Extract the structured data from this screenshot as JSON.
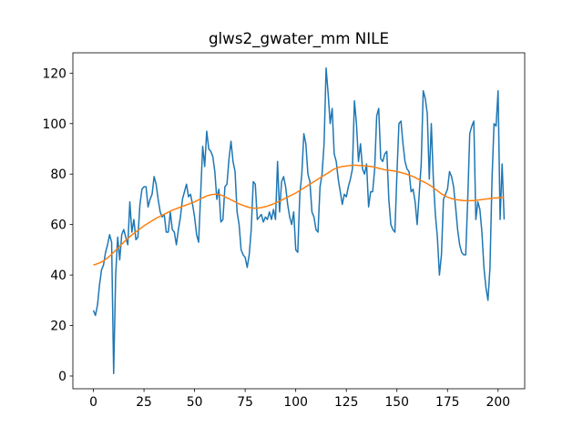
{
  "chart_data": {
    "type": "line",
    "title": "glws2_gwater_mm NILE",
    "x": [
      0,
      1,
      2,
      3,
      4,
      5,
      6,
      7,
      8,
      9,
      10,
      11,
      12,
      13,
      14,
      15,
      16,
      17,
      18,
      19,
      20,
      21,
      22,
      23,
      24,
      25,
      26,
      27,
      28,
      29,
      30,
      31,
      32,
      33,
      34,
      35,
      36,
      37,
      38,
      39,
      40,
      41,
      42,
      43,
      44,
      45,
      46,
      47,
      48,
      49,
      50,
      51,
      52,
      53,
      54,
      55,
      56,
      57,
      58,
      59,
      60,
      61,
      62,
      63,
      64,
      65,
      66,
      67,
      68,
      69,
      70,
      71,
      72,
      73,
      74,
      75,
      76,
      77,
      78,
      79,
      80,
      81,
      82,
      83,
      84,
      85,
      86,
      87,
      88,
      89,
      90,
      91,
      92,
      93,
      94,
      95,
      96,
      97,
      98,
      99,
      100,
      101,
      102,
      103,
      104,
      105,
      106,
      107,
      108,
      109,
      110,
      111,
      112,
      113,
      114,
      115,
      116,
      117,
      118,
      119,
      120,
      121,
      122,
      123,
      124,
      125,
      126,
      127,
      128,
      129,
      130,
      131,
      132,
      133,
      134,
      135,
      136,
      137,
      138,
      139,
      140,
      141,
      142,
      143,
      144,
      145,
      146,
      147,
      148,
      149,
      150,
      151,
      152,
      153,
      154,
      155,
      156,
      157,
      158,
      159,
      160,
      161,
      162,
      163,
      164,
      165,
      166,
      167,
      168,
      169,
      170,
      171,
      172,
      173,
      174,
      175,
      176,
      177,
      178,
      179,
      180,
      181,
      182,
      183,
      184,
      185,
      186,
      187,
      188,
      189,
      190,
      191,
      192,
      193,
      194,
      195,
      196,
      197,
      198,
      199,
      200,
      201,
      202,
      203
    ],
    "series": [
      {
        "color": "#1f77b4",
        "values": [
          26,
          24,
          28,
          36,
          42,
          44,
          49,
          52,
          56,
          53,
          1,
          40,
          55,
          46,
          56,
          58,
          55,
          52,
          69,
          57,
          62,
          54,
          55,
          68,
          74,
          75,
          75,
          67,
          70,
          72,
          79,
          76,
          70,
          65,
          63,
          64,
          57,
          57,
          65,
          58,
          57,
          52,
          58,
          63,
          70,
          73,
          76,
          71,
          72,
          68,
          63,
          56,
          53,
          72,
          91,
          83,
          97,
          90,
          89,
          87,
          81,
          70,
          74,
          61,
          62,
          75,
          76,
          86,
          93,
          85,
          81,
          65,
          60,
          50,
          48,
          47,
          43,
          48,
          58,
          77,
          76,
          62,
          63,
          64,
          61,
          63,
          62,
          65,
          62,
          66,
          62,
          85,
          65,
          77,
          79,
          75,
          68,
          63,
          60,
          65,
          50,
          49,
          72,
          80,
          96,
          92,
          80,
          77,
          65,
          63,
          58,
          57,
          75,
          80,
          92,
          122,
          112,
          100,
          106,
          88,
          85,
          78,
          73,
          68,
          72,
          71,
          75,
          78,
          82,
          109,
          100,
          85,
          92,
          82,
          80,
          84,
          67,
          73,
          73,
          82,
          103,
          106,
          86,
          85,
          88,
          89,
          70,
          60,
          58,
          57,
          80,
          100,
          101,
          92,
          85,
          82,
          81,
          73,
          74,
          69,
          60,
          72,
          84,
          113,
          110,
          104,
          78,
          100,
          78,
          64,
          55,
          40,
          48,
          70,
          72,
          74,
          81,
          79,
          75,
          67,
          58,
          52,
          49,
          48,
          48,
          70,
          96,
          99,
          101,
          62,
          69,
          66,
          57,
          43,
          35,
          30,
          43,
          78,
          100,
          99,
          113,
          62,
          84,
          62
        ]
      },
      {
        "color": "#ff7f0e",
        "values": [
          44,
          44.2,
          44.5,
          44.8,
          45.2,
          45.6,
          46.2,
          46.8,
          47.5,
          48.2,
          49,
          49.8,
          50.6,
          51.4,
          52.2,
          53,
          53.8,
          54.5,
          55.2,
          55.9,
          56.5,
          57.1,
          57.7,
          58.3,
          58.9,
          59.5,
          60,
          60.5,
          61,
          61.5,
          62,
          62.5,
          62.9,
          63.3,
          63.7,
          64.1,
          64.5,
          64.9,
          65.3,
          65.7,
          66,
          66.3,
          66.6,
          66.9,
          67.2,
          67.5,
          67.8,
          68.1,
          68.4,
          68.7,
          69,
          69.4,
          69.8,
          70.2,
          70.6,
          71,
          71.3,
          71.6,
          71.8,
          71.9,
          72,
          72,
          71.9,
          71.7,
          71.4,
          71,
          70.6,
          70.2,
          69.8,
          69.4,
          69,
          68.6,
          68.2,
          67.9,
          67.6,
          67.3,
          67,
          66.8,
          66.6,
          66.5,
          66.5,
          66.5,
          66.6,
          66.7,
          66.9,
          67.1,
          67.3,
          67.6,
          67.9,
          68.2,
          68.5,
          68.9,
          69.3,
          69.7,
          70.1,
          70.5,
          70.9,
          71.3,
          71.7,
          72.1,
          72.5,
          73,
          73.5,
          74,
          74.5,
          75,
          75.5,
          76,
          76.5,
          77,
          77.5,
          78,
          78.5,
          79,
          79.5,
          80,
          80.5,
          81,
          81.5,
          82,
          82.3,
          82.6,
          82.8,
          83,
          83.1,
          83.2,
          83.3,
          83.4,
          83.5,
          83.5,
          83.5,
          83.4,
          83.4,
          83.3,
          83.3,
          83.2,
          83.1,
          83,
          82.9,
          82.7,
          82.5,
          82.3,
          82.1,
          81.9,
          81.7,
          81.6,
          81.5,
          81.4,
          81.3,
          81.2,
          81,
          80.8,
          80.6,
          80.4,
          80.2,
          79.9,
          79.6,
          79.3,
          79,
          78.6,
          78.2,
          77.8,
          77.4,
          77,
          76.6,
          76.2,
          75.7,
          75.2,
          74.6,
          74,
          73.4,
          72.8,
          72.2,
          71.7,
          71.3,
          70.9,
          70.6,
          70.3,
          70.1,
          69.9,
          69.8,
          69.7,
          69.6,
          69.5,
          69.5,
          69.5,
          69.5,
          69.5,
          69.5,
          69.6,
          69.7,
          69.8,
          69.9,
          70,
          70.1,
          70.2,
          70.3,
          70.4,
          70.5,
          70.5,
          70.6,
          70.6,
          70.7,
          70.7
        ]
      }
    ],
    "xlim": [
      -10.15,
      213.15
    ],
    "xticks": [
      0,
      25,
      50,
      75,
      100,
      125,
      150,
      175,
      200
    ],
    "ylim": [
      -5.05,
      128.05
    ],
    "yticks": [
      0,
      20,
      40,
      60,
      80,
      100,
      120
    ],
    "grid": false
  }
}
